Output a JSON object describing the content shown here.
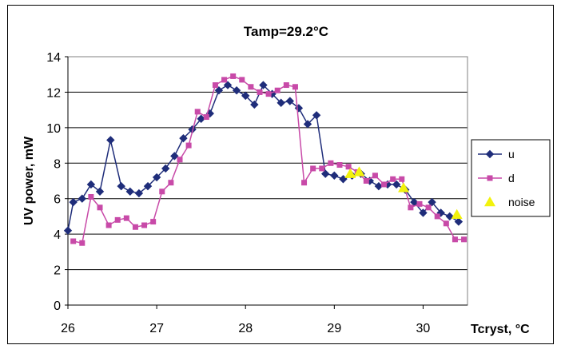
{
  "chart_data": {
    "type": "line",
    "title": "Tamp=29.2°C",
    "xlabel": "Tcryst, °C",
    "ylabel": "UV power, mW",
    "xlim": [
      26,
      30.5
    ],
    "ylim": [
      0,
      14
    ],
    "xticks": [
      26,
      27,
      28,
      29,
      30
    ],
    "yticks": [
      0,
      2,
      4,
      6,
      8,
      10,
      12,
      14
    ],
    "grid": "horizontal",
    "legend_position": "right",
    "series": [
      {
        "name": "u",
        "color": "#1f2d7a",
        "marker": "diamond",
        "points": [
          [
            26.0,
            4.2
          ],
          [
            26.06,
            5.8
          ],
          [
            26.16,
            6.0
          ],
          [
            26.26,
            6.8
          ],
          [
            26.36,
            6.4
          ],
          [
            26.48,
            9.3
          ],
          [
            26.6,
            6.7
          ],
          [
            26.7,
            6.4
          ],
          [
            26.8,
            6.3
          ],
          [
            26.9,
            6.7
          ],
          [
            27.0,
            7.2
          ],
          [
            27.1,
            7.7
          ],
          [
            27.2,
            8.4
          ],
          [
            27.3,
            9.4
          ],
          [
            27.4,
            9.9
          ],
          [
            27.5,
            10.5
          ],
          [
            27.6,
            10.8
          ],
          [
            27.7,
            12.1
          ],
          [
            27.8,
            12.4
          ],
          [
            27.9,
            12.1
          ],
          [
            28.0,
            11.8
          ],
          [
            28.1,
            11.3
          ],
          [
            28.2,
            12.4
          ],
          [
            28.3,
            11.9
          ],
          [
            28.4,
            11.4
          ],
          [
            28.5,
            11.5
          ],
          [
            28.6,
            11.1
          ],
          [
            28.7,
            10.2
          ],
          [
            28.8,
            10.7
          ],
          [
            28.9,
            7.4
          ],
          [
            29.0,
            7.3
          ],
          [
            29.1,
            7.1
          ],
          [
            29.2,
            7.3
          ],
          [
            29.3,
            7.4
          ],
          [
            29.4,
            7.0
          ],
          [
            29.5,
            6.7
          ],
          [
            29.6,
            6.8
          ],
          [
            29.7,
            6.8
          ],
          [
            29.8,
            6.5
          ],
          [
            29.9,
            5.8
          ],
          [
            30.0,
            5.2
          ],
          [
            30.1,
            5.8
          ],
          [
            30.2,
            5.2
          ],
          [
            30.3,
            5.0
          ],
          [
            30.4,
            4.7
          ]
        ]
      },
      {
        "name": "d",
        "color": "#c84aa8",
        "marker": "square",
        "points": [
          [
            26.06,
            3.6
          ],
          [
            26.16,
            3.5
          ],
          [
            26.26,
            6.1
          ],
          [
            26.36,
            5.5
          ],
          [
            26.46,
            4.5
          ],
          [
            26.56,
            4.8
          ],
          [
            26.66,
            4.9
          ],
          [
            26.76,
            4.4
          ],
          [
            26.86,
            4.5
          ],
          [
            26.96,
            4.7
          ],
          [
            27.06,
            6.4
          ],
          [
            27.16,
            6.9
          ],
          [
            27.26,
            8.2
          ],
          [
            27.36,
            9.0
          ],
          [
            27.46,
            10.9
          ],
          [
            27.56,
            10.6
          ],
          [
            27.66,
            12.4
          ],
          [
            27.76,
            12.7
          ],
          [
            27.86,
            12.9
          ],
          [
            27.96,
            12.7
          ],
          [
            28.06,
            12.3
          ],
          [
            28.16,
            12.0
          ],
          [
            28.26,
            11.9
          ],
          [
            28.36,
            12.1
          ],
          [
            28.46,
            12.4
          ],
          [
            28.56,
            12.3
          ],
          [
            28.66,
            6.9
          ],
          [
            28.76,
            7.7
          ],
          [
            28.86,
            7.7
          ],
          [
            28.96,
            8.0
          ],
          [
            29.06,
            7.9
          ],
          [
            29.16,
            7.8
          ],
          [
            29.26,
            7.5
          ],
          [
            29.36,
            7.0
          ],
          [
            29.46,
            7.3
          ],
          [
            29.56,
            6.8
          ],
          [
            29.66,
            7.1
          ],
          [
            29.76,
            7.1
          ],
          [
            29.86,
            5.5
          ],
          [
            29.96,
            5.7
          ],
          [
            30.06,
            5.5
          ],
          [
            30.16,
            5.0
          ],
          [
            30.26,
            4.6
          ],
          [
            30.36,
            3.7
          ],
          [
            30.46,
            3.7
          ]
        ]
      },
      {
        "name": "noise",
        "color": "#f2f20c",
        "marker": "triangle",
        "points": [
          [
            29.18,
            7.4
          ],
          [
            29.28,
            7.5
          ],
          [
            29.78,
            6.6
          ],
          [
            30.38,
            5.1
          ]
        ]
      }
    ]
  }
}
